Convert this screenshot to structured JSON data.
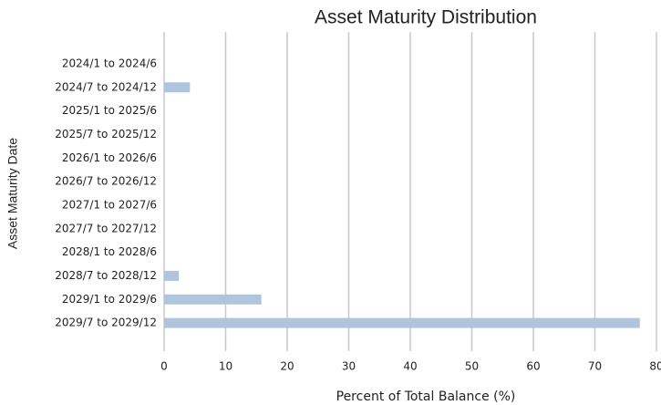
{
  "chart_data": {
    "type": "barh",
    "title": "Asset Maturity Distribution",
    "xlabel": "Percent of Total Balance (%)",
    "ylabel": "Asset Maturity Date",
    "categories": [
      "2024/1 to 2024/6",
      "2024/7 to 2024/12",
      "2025/1 to 2025/6",
      "2025/7 to 2025/12",
      "2026/1 to 2026/6",
      "2026/7 to 2026/12",
      "2027/1 to 2027/6",
      "2027/7 to 2027/12",
      "2028/1 to 2028/6",
      "2028/7 to 2028/12",
      "2029/1 to 2029/6",
      "2029/7 to 2029/12"
    ],
    "values": [
      0,
      4.2,
      0,
      0,
      0,
      0,
      0,
      0,
      0,
      2.4,
      15.8,
      77.3
    ],
    "color": "#b0c4de",
    "xlim": [
      0,
      80
    ],
    "xticks": [
      0,
      10,
      20,
      30,
      40,
      50,
      60,
      70,
      80
    ],
    "grid": true
  }
}
